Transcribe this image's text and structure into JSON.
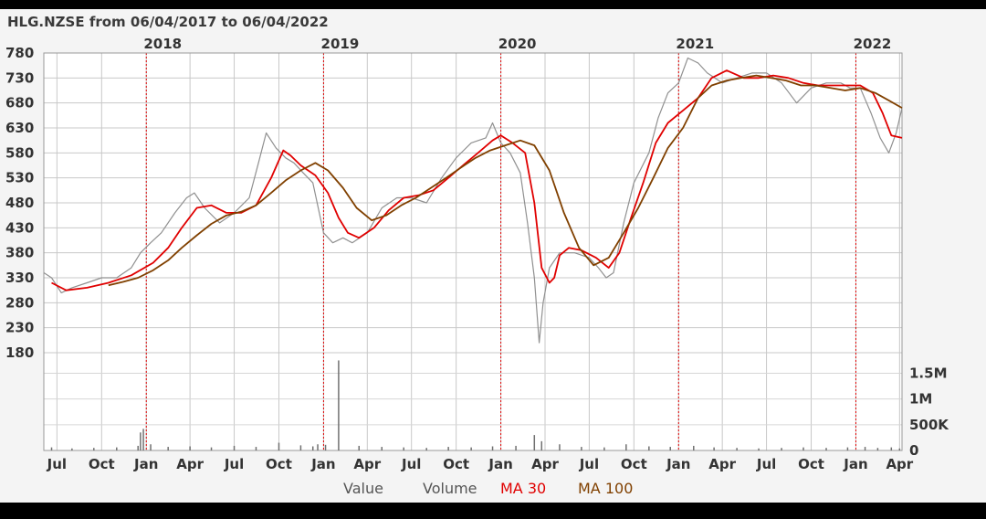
{
  "chart_data": {
    "type": "line",
    "title": "HLG.NZSE from 06/04/2017 to 06/04/2022",
    "x_range": [
      "2017-06-04",
      "2022-04-06"
    ],
    "ylim": [
      180,
      780
    ],
    "y_ticks": [
      780,
      730,
      680,
      630,
      580,
      530,
      480,
      430,
      380,
      330,
      280,
      230,
      180
    ],
    "year_labels": [
      {
        "label": "2018",
        "date": "2018-01-01"
      },
      {
        "label": "2019",
        "date": "2019-01-01"
      },
      {
        "label": "2020",
        "date": "2020-01-01"
      },
      {
        "label": "2021",
        "date": "2021-01-01"
      },
      {
        "label": "2022",
        "date": "2022-01-01"
      }
    ],
    "month_ticks": [
      {
        "label": "Jul",
        "date": "2017-07-01"
      },
      {
        "label": "Oct",
        "date": "2017-10-01"
      },
      {
        "label": "Jan",
        "date": "2018-01-01"
      },
      {
        "label": "Apr",
        "date": "2018-04-01"
      },
      {
        "label": "Jul",
        "date": "2018-07-01"
      },
      {
        "label": "Oct",
        "date": "2018-10-01"
      },
      {
        "label": "Jan",
        "date": "2019-01-01"
      },
      {
        "label": "Apr",
        "date": "2019-04-01"
      },
      {
        "label": "Jul",
        "date": "2019-07-01"
      },
      {
        "label": "Oct",
        "date": "2019-10-01"
      },
      {
        "label": "Jan",
        "date": "2020-01-01"
      },
      {
        "label": "Apr",
        "date": "2020-04-01"
      },
      {
        "label": "Jul",
        "date": "2020-07-01"
      },
      {
        "label": "Oct",
        "date": "2020-10-01"
      },
      {
        "label": "Jan",
        "date": "2021-01-01"
      },
      {
        "label": "Apr",
        "date": "2021-04-01"
      },
      {
        "label": "Jul",
        "date": "2021-07-01"
      },
      {
        "label": "Oct",
        "date": "2021-10-01"
      },
      {
        "label": "Jan",
        "date": "2022-01-01"
      },
      {
        "label": "Apr",
        "date": "2022-04-01"
      }
    ],
    "volume_ticks": [
      {
        "label": "1.5M",
        "value": 1500000
      },
      {
        "label": "1M",
        "value": 1000000
      },
      {
        "label": "500K",
        "value": 500000
      },
      {
        "label": "0",
        "value": 0
      }
    ],
    "volume_max": 1900000,
    "grid": true,
    "legend": [
      {
        "label": "Value",
        "color": "#555555"
      },
      {
        "label": "Volume",
        "color": "#555555"
      },
      {
        "label": "MA 30",
        "color": "#e00000"
      },
      {
        "label": "MA 100",
        "color": "#804000"
      }
    ],
    "series": [
      {
        "name": "Value",
        "color": "#909090",
        "x": [
          "2017-06-04",
          "2017-06-20",
          "2017-07-10",
          "2017-08-01",
          "2017-09-01",
          "2017-10-01",
          "2017-11-01",
          "2017-12-01",
          "2017-12-20",
          "2018-01-10",
          "2018-02-01",
          "2018-03-01",
          "2018-03-25",
          "2018-04-10",
          "2018-05-01",
          "2018-06-01",
          "2018-07-01",
          "2018-08-01",
          "2018-08-20",
          "2018-09-05",
          "2018-09-25",
          "2018-10-15",
          "2018-11-01",
          "2018-11-20",
          "2018-12-10",
          "2019-01-01",
          "2019-01-20",
          "2019-02-10",
          "2019-03-01",
          "2019-04-01",
          "2019-05-01",
          "2019-06-01",
          "2019-07-01",
          "2019-08-01",
          "2019-09-01",
          "2019-10-01",
          "2019-11-01",
          "2019-12-01",
          "2019-12-15",
          "2020-01-01",
          "2020-01-20",
          "2020-02-10",
          "2020-02-25",
          "2020-03-10",
          "2020-03-20",
          "2020-03-28",
          "2020-04-10",
          "2020-05-01",
          "2020-06-01",
          "2020-07-01",
          "2020-07-20",
          "2020-08-05",
          "2020-08-20",
          "2020-09-10",
          "2020-10-01",
          "2020-11-01",
          "2020-11-20",
          "2020-12-10",
          "2021-01-01",
          "2021-01-20",
          "2021-02-10",
          "2021-03-01",
          "2021-04-01",
          "2021-05-01",
          "2021-06-01",
          "2021-07-01",
          "2021-08-01",
          "2021-09-01",
          "2021-10-01",
          "2021-11-01",
          "2021-12-01",
          "2021-12-20",
          "2022-01-10",
          "2022-02-01",
          "2022-02-20",
          "2022-03-10",
          "2022-03-25",
          "2022-04-06"
        ],
        "values": [
          340,
          330,
          300,
          310,
          320,
          330,
          330,
          350,
          380,
          400,
          420,
          460,
          490,
          500,
          470,
          440,
          460,
          490,
          560,
          620,
          590,
          570,
          560,
          540,
          520,
          420,
          400,
          410,
          400,
          420,
          470,
          490,
          490,
          480,
          530,
          570,
          600,
          610,
          640,
          600,
          580,
          540,
          440,
          330,
          200,
          280,
          350,
          380,
          380,
          370,
          350,
          330,
          340,
          440,
          520,
          580,
          650,
          700,
          720,
          770,
          760,
          740,
          720,
          730,
          740,
          740,
          720,
          680,
          710,
          720,
          720,
          710,
          710,
          660,
          610,
          580,
          620,
          670
        ]
      },
      {
        "name": "MA 30",
        "color": "#e00000",
        "x": [
          "2017-06-20",
          "2017-07-20",
          "2017-09-01",
          "2017-10-15",
          "2017-12-01",
          "2018-01-15",
          "2018-02-15",
          "2018-03-15",
          "2018-04-15",
          "2018-05-15",
          "2018-06-15",
          "2018-07-15",
          "2018-08-15",
          "2018-09-15",
          "2018-10-10",
          "2018-10-25",
          "2018-11-15",
          "2018-12-15",
          "2019-01-10",
          "2019-02-01",
          "2019-02-20",
          "2019-03-15",
          "2019-04-15",
          "2019-05-15",
          "2019-06-15",
          "2019-07-15",
          "2019-08-15",
          "2019-09-15",
          "2019-10-15",
          "2019-11-15",
          "2019-12-15",
          "2020-01-01",
          "2020-01-25",
          "2020-02-20",
          "2020-03-10",
          "2020-03-25",
          "2020-04-10",
          "2020-04-20",
          "2020-05-01",
          "2020-05-20",
          "2020-06-15",
          "2020-07-15",
          "2020-08-10",
          "2020-09-01",
          "2020-09-25",
          "2020-10-20",
          "2020-11-15",
          "2020-12-10",
          "2021-01-10",
          "2021-02-10",
          "2021-03-10",
          "2021-04-10",
          "2021-05-15",
          "2021-06-15",
          "2021-07-15",
          "2021-08-15",
          "2021-09-15",
          "2021-10-15",
          "2021-11-15",
          "2021-12-15",
          "2022-01-10",
          "2022-02-05",
          "2022-02-25",
          "2022-03-15",
          "2022-04-06"
        ],
        "values": [
          320,
          305,
          310,
          320,
          335,
          360,
          390,
          430,
          470,
          475,
          460,
          460,
          475,
          530,
          585,
          575,
          555,
          535,
          500,
          450,
          420,
          410,
          430,
          465,
          490,
          495,
          505,
          530,
          555,
          580,
          605,
          615,
          600,
          580,
          480,
          350,
          320,
          330,
          375,
          390,
          385,
          370,
          350,
          380,
          450,
          520,
          600,
          640,
          665,
          690,
          730,
          745,
          730,
          730,
          735,
          730,
          720,
          715,
          715,
          715,
          715,
          700,
          660,
          615,
          610
        ]
      },
      {
        "name": "MA 100",
        "color": "#804000",
        "x": [
          "2017-10-15",
          "2017-11-15",
          "2017-12-15",
          "2018-01-15",
          "2018-02-15",
          "2018-03-15",
          "2018-04-15",
          "2018-05-15",
          "2018-06-15",
          "2018-07-15",
          "2018-08-15",
          "2018-09-15",
          "2018-10-15",
          "2018-11-15",
          "2018-12-15",
          "2019-01-10",
          "2019-02-10",
          "2019-03-10",
          "2019-04-10",
          "2019-05-10",
          "2019-06-10",
          "2019-07-10",
          "2019-08-10",
          "2019-09-10",
          "2019-10-10",
          "2019-11-10",
          "2019-12-10",
          "2020-01-10",
          "2020-02-10",
          "2020-03-10",
          "2020-04-10",
          "2020-05-10",
          "2020-06-10",
          "2020-07-10",
          "2020-08-10",
          "2020-09-10",
          "2020-10-10",
          "2020-11-10",
          "2020-12-10",
          "2021-01-10",
          "2021-02-10",
          "2021-03-10",
          "2021-04-10",
          "2021-05-10",
          "2021-06-10",
          "2021-07-10",
          "2021-08-10",
          "2021-09-10",
          "2021-10-10",
          "2021-11-10",
          "2021-12-10",
          "2022-01-10",
          "2022-02-10",
          "2022-03-10",
          "2022-04-06"
        ],
        "values": [
          315,
          322,
          330,
          345,
          365,
          390,
          415,
          438,
          455,
          462,
          475,
          500,
          525,
          545,
          560,
          545,
          510,
          470,
          445,
          455,
          475,
          490,
          510,
          530,
          550,
          570,
          585,
          595,
          605,
          595,
          545,
          460,
          390,
          355,
          370,
          420,
          470,
          530,
          590,
          630,
          690,
          715,
          725,
          730,
          735,
          730,
          725,
          715,
          715,
          710,
          705,
          710,
          700,
          685,
          670
        ]
      }
    ],
    "volume": {
      "x": [
        "2017-06-20",
        "2017-08-01",
        "2017-09-15",
        "2017-11-01",
        "2017-12-15",
        "2017-12-20",
        "2017-12-26",
        "2018-01-10",
        "2018-02-15",
        "2018-04-01",
        "2018-05-15",
        "2018-07-01",
        "2018-08-15",
        "2018-10-01",
        "2018-11-15",
        "2018-12-10",
        "2018-12-20",
        "2019-01-05",
        "2019-02-01",
        "2019-03-15",
        "2019-05-01",
        "2019-06-15",
        "2019-08-01",
        "2019-09-15",
        "2019-11-01",
        "2019-12-15",
        "2020-02-01",
        "2020-03-10",
        "2020-03-25",
        "2020-05-01",
        "2020-06-15",
        "2020-08-01",
        "2020-09-15",
        "2020-11-01",
        "2020-12-15",
        "2021-02-01",
        "2021-03-15",
        "2021-05-01",
        "2021-06-15",
        "2021-08-01",
        "2021-09-15",
        "2021-11-01",
        "2021-12-15",
        "2022-01-20",
        "2022-02-15",
        "2022-03-15",
        "2022-04-01"
      ],
      "values": [
        60000,
        40000,
        50000,
        60000,
        90000,
        350000,
        420000,
        120000,
        70000,
        80000,
        60000,
        90000,
        70000,
        150000,
        100000,
        80000,
        120000,
        110000,
        1750000,
        90000,
        70000,
        60000,
        50000,
        70000,
        60000,
        80000,
        90000,
        300000,
        180000,
        120000,
        70000,
        60000,
        120000,
        80000,
        70000,
        90000,
        60000,
        50000,
        40000,
        50000,
        60000,
        50000,
        60000,
        70000,
        50000,
        60000,
        40000
      ]
    }
  }
}
